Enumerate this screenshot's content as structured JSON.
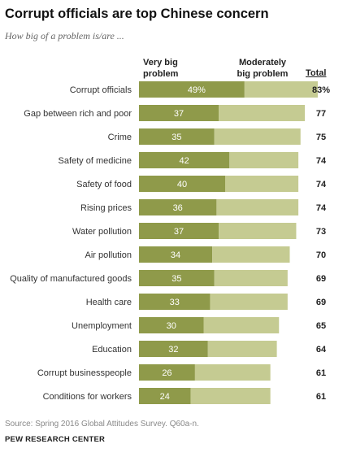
{
  "title": "Corrupt officials are top Chinese concern",
  "subtitle": "How big of a problem is/are ...",
  "headers": {
    "very_big": "Very big\nproblem",
    "moderately_big": "Moderately\nbig problem",
    "total": "Total"
  },
  "source": "Source: Spring 2016 Global Attitudes Survey. Q60a-n.",
  "org": "PEW RESEARCH CENTER",
  "colors": {
    "very_big": "#8f9a4a",
    "moderately_big": "#c5cb92",
    "label_text": "#ffffff"
  },
  "chart_data": {
    "type": "bar",
    "orientation": "horizontal",
    "stacked": true,
    "categories": [
      "Corrupt officials",
      "Gap between rich and poor",
      "Crime",
      "Safety of medicine",
      "Safety of food",
      "Rising prices",
      "Water pollution",
      "Air pollution",
      "Quality of manufactured goods",
      "Health care",
      "Unemployment",
      "Education",
      "Corrupt businesspeople",
      "Conditions for workers"
    ],
    "series": [
      {
        "name": "Very big problem",
        "values": [
          49,
          37,
          35,
          42,
          40,
          36,
          37,
          34,
          35,
          33,
          30,
          32,
          26,
          24
        ],
        "labels": [
          "49%",
          "37",
          "35",
          "42",
          "40",
          "36",
          "37",
          "34",
          "35",
          "33",
          "30",
          "32",
          "26",
          "24"
        ]
      },
      {
        "name": "Moderately big problem",
        "values": [
          34,
          40,
          40,
          32,
          34,
          38,
          36,
          36,
          34,
          36,
          35,
          32,
          35,
          37
        ]
      }
    ],
    "totals": [
      83,
      77,
      75,
      74,
      74,
      74,
      73,
      70,
      69,
      69,
      65,
      64,
      61,
      61
    ],
    "totals_labels": [
      "83%",
      "77",
      "75",
      "74",
      "74",
      "74",
      "73",
      "70",
      "69",
      "69",
      "65",
      "64",
      "61",
      "61"
    ],
    "xlim": [
      0,
      100
    ]
  }
}
